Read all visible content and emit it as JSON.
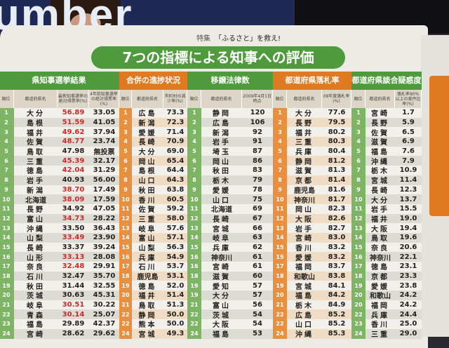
{
  "cover": {
    "partial_word": "umber"
  },
  "kicker": {
    "label": "特集",
    "text": "「ふるさと」を救え!"
  },
  "title": "7つの指標による知事への評価",
  "colors": {
    "green": "#4f9a3c",
    "orange": "#e07a22",
    "red_value": "#d02828"
  },
  "tables": [
    {
      "theme": "g",
      "header": "県知事選挙結果",
      "cols": [
        "順位",
        "都道府県名",
        "最新知事選挙の絶対得票率(%)",
        "4年前知事選挙の絶対得票率(%)"
      ],
      "rows": [
        [
          "1",
          "大分",
          "56.89",
          "33.05"
        ],
        [
          "2",
          "島根",
          "51.59",
          "41.05"
        ],
        [
          "3",
          "福井",
          "49.62",
          "37.94"
        ],
        [
          "4",
          "佐賀",
          "48.77",
          "23.74"
        ],
        [
          "5",
          "鳥取",
          "47.98",
          "無投票"
        ],
        [
          "6",
          "三重",
          "45.39",
          "32.17"
        ],
        [
          "7",
          "徳島",
          "42.04",
          "31.29"
        ],
        [
          "8",
          "岩手",
          "40.93",
          "56.00"
        ],
        [
          "9",
          "新潟",
          "38.70",
          "17.49"
        ],
        [
          "10",
          "北海道",
          "38.09",
          "17.59"
        ],
        [
          "11",
          "長野",
          "34.92",
          "47.05"
        ],
        [
          "12",
          "富山",
          "34.73",
          "28.22"
        ],
        [
          "13",
          "沖縄",
          "33.50",
          "36.43"
        ],
        [
          "14",
          "山梨",
          "33.49",
          "23.90"
        ],
        [
          "15",
          "長崎",
          "33.37",
          "39.24"
        ],
        [
          "16",
          "山形",
          "33.13",
          "28.08"
        ],
        [
          "17",
          "奈良",
          "32.48",
          "29.91"
        ],
        [
          "18",
          "石川",
          "32.47",
          "35.70"
        ],
        [
          "19",
          "秋田",
          "31.44",
          "32.55"
        ],
        [
          "20",
          "茨城",
          "30.63",
          "45.31"
        ],
        [
          "21",
          "岐阜",
          "30.51",
          "30.22"
        ],
        [
          "22",
          "青森",
          "30.14",
          "25.07"
        ],
        [
          "23",
          "福島",
          "29.89",
          "42.37"
        ],
        [
          "24",
          "宮崎",
          "28.62",
          "29.62"
        ]
      ],
      "red_ranks": [
        "1",
        "2",
        "3",
        "4",
        "6",
        "7",
        "9",
        "10",
        "12",
        "14",
        "16",
        "17",
        "21",
        "22"
      ]
    },
    {
      "theme": "o",
      "header": "合併の進捗状況",
      "cols": [
        "順位",
        "都道府県名",
        "市町村の減少率(%)"
      ],
      "rows": [
        [
          "1",
          "広島",
          "73.3"
        ],
        [
          "2",
          "新潟",
          "72.3"
        ],
        [
          "3",
          "愛媛",
          "71.4"
        ],
        [
          "4",
          "長崎",
          "70.9"
        ],
        [
          "5",
          "大分",
          "69.0"
        ],
        [
          "6",
          "岡山",
          "65.4"
        ],
        [
          "7",
          "島根",
          "64.4"
        ],
        [
          "8",
          "山口",
          "64.3"
        ],
        [
          "9",
          "秋田",
          "63.8"
        ],
        [
          "10",
          "香川",
          "60.5"
        ],
        [
          "11",
          "佐賀",
          "59.2"
        ],
        [
          "12",
          "三重",
          "58.0"
        ],
        [
          "13",
          "岐阜",
          "57.6"
        ],
        [
          "14",
          "富山",
          "57.1"
        ],
        [
          "15",
          "山梨",
          "56.3"
        ],
        [
          "16",
          "兵庫",
          "54.9"
        ],
        [
          "17",
          "石川",
          "53.7"
        ],
        [
          "18",
          "鹿児島",
          "53.1"
        ],
        [
          "19",
          "徳島",
          "52.0"
        ],
        [
          "20",
          "福井",
          "51.4"
        ],
        [
          "21",
          "鳥取",
          "51.3"
        ],
        [
          "22",
          "静岡",
          "50.0"
        ],
        [
          "22",
          "熊本",
          "50.0"
        ],
        [
          "24",
          "宮城",
          "49.3"
        ]
      ]
    },
    {
      "theme": "g",
      "header": "移譲法律数",
      "cols": [
        "順位",
        "都道府県名",
        "2009年4月1日時点"
      ],
      "rows": [
        [
          "1",
          "静岡",
          "120"
        ],
        [
          "2",
          "広島",
          "106"
        ],
        [
          "3",
          "新潟",
          "92"
        ],
        [
          "4",
          "岩手",
          "91"
        ],
        [
          "5",
          "埼玉",
          "87"
        ],
        [
          "6",
          "岡山",
          "86"
        ],
        [
          "7",
          "秋田",
          "83"
        ],
        [
          "8",
          "栃木",
          "79"
        ],
        [
          "9",
          "愛媛",
          "78"
        ],
        [
          "10",
          "山口",
          "75"
        ],
        [
          "11",
          "北海道",
          "69"
        ],
        [
          "12",
          "長崎",
          "67"
        ],
        [
          "13",
          "宮城",
          "66"
        ],
        [
          "14",
          "岐阜",
          "63"
        ],
        [
          "15",
          "兵庫",
          "62"
        ],
        [
          "16",
          "神奈川",
          "61"
        ],
        [
          "16",
          "宮崎",
          "61"
        ],
        [
          "18",
          "滋賀",
          "60"
        ],
        [
          "19",
          "愛知",
          "57"
        ],
        [
          "19",
          "大分",
          "57"
        ],
        [
          "21",
          "富山",
          "56"
        ],
        [
          "22",
          "茨城",
          "54"
        ],
        [
          "22",
          "大阪",
          "54"
        ],
        [
          "24",
          "福島",
          "53"
        ]
      ]
    },
    {
      "theme": "o",
      "header": "都道府県落札率",
      "cols": [
        "順位",
        "都道府県名",
        "08年度落札率(%)"
      ],
      "rows": [
        [
          "1",
          "大分",
          "77.6"
        ],
        [
          "2",
          "長野",
          "79.5"
        ],
        [
          "3",
          "福井",
          "80.2"
        ],
        [
          "4",
          "三重",
          "80.3"
        ],
        [
          "5",
          "兵庫",
          "80.4"
        ],
        [
          "6",
          "静岡",
          "81.2"
        ],
        [
          "7",
          "滋賀",
          "81.3"
        ],
        [
          "8",
          "京都",
          "81.4"
        ],
        [
          "9",
          "鹿児島",
          "81.6"
        ],
        [
          "10",
          "神奈川",
          "81.7"
        ],
        [
          "11",
          "岡山",
          "82.3"
        ],
        [
          "12",
          "大阪",
          "82.6"
        ],
        [
          "13",
          "岩手",
          "82.7"
        ],
        [
          "14",
          "宮崎",
          "83.0"
        ],
        [
          "15",
          "香川",
          "83.2"
        ],
        [
          "15",
          "愛媛",
          "83.2"
        ],
        [
          "17",
          "福岡",
          "83.7"
        ],
        [
          "18",
          "和歌山",
          "83.8"
        ],
        [
          "19",
          "宮城",
          "84.1"
        ],
        [
          "20",
          "福島",
          "84.2"
        ],
        [
          "21",
          "栃木",
          "84.9"
        ],
        [
          "22",
          "広島",
          "85.2"
        ],
        [
          "22",
          "山口",
          "85.2"
        ],
        [
          "24",
          "沖縄",
          "85.3"
        ]
      ]
    },
    {
      "theme": "g",
      "header": "都道府県談合疑惑度",
      "cols": [
        "順位",
        "都道府県名",
        "落札率90%以上の案件比率(%)"
      ],
      "rows": [
        [
          "1",
          "宮崎",
          "1.7"
        ],
        [
          "2",
          "長野",
          "5.9"
        ],
        [
          "3",
          "佐賀",
          "6.5"
        ],
        [
          "4",
          "滋賀",
          "6.9"
        ],
        [
          "5",
          "福島",
          "7.6"
        ],
        [
          "6",
          "沖縄",
          "7.9"
        ],
        [
          "7",
          "栃木",
          "10.9"
        ],
        [
          "8",
          "宮城",
          "11.4"
        ],
        [
          "9",
          "長崎",
          "12.3"
        ],
        [
          "10",
          "大分",
          "13.7"
        ],
        [
          "11",
          "岩手",
          "15.5"
        ],
        [
          "12",
          "福井",
          "19.0"
        ],
        [
          "13",
          "大阪",
          "19.4"
        ],
        [
          "14",
          "鳥取",
          "19.6"
        ],
        [
          "15",
          "奈良",
          "20.6"
        ],
        [
          "16",
          "神奈川",
          "22.1"
        ],
        [
          "17",
          "徳島",
          "23.1"
        ],
        [
          "18",
          "京都",
          "23.3"
        ],
        [
          "19",
          "愛媛",
          "23.8"
        ],
        [
          "20",
          "和歌山",
          "24.2"
        ],
        [
          "20",
          "福岡",
          "24.2"
        ],
        [
          "22",
          "兵庫",
          "24.4"
        ],
        [
          "23",
          "香川",
          "25.0"
        ],
        [
          "24",
          "三重",
          "29.0"
        ]
      ]
    }
  ]
}
